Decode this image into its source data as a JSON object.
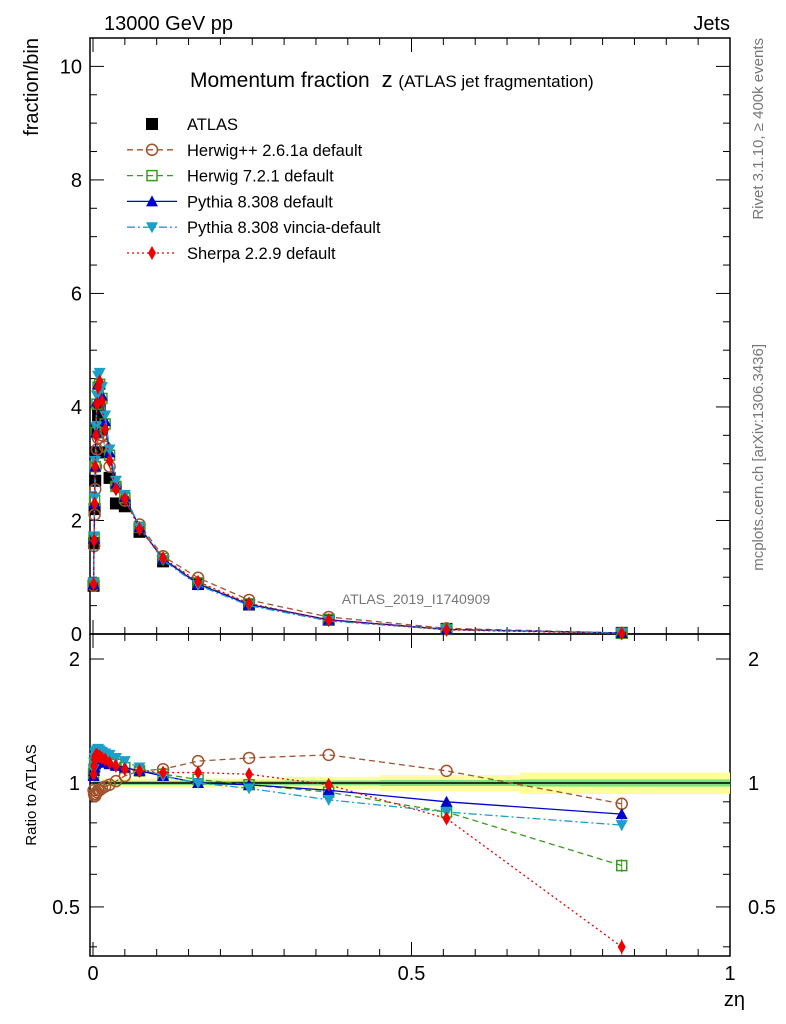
{
  "header": {
    "energy_label": "13000 GeV pp",
    "category_label": "Jets"
  },
  "side_labels": {
    "rivet": "Rivet 3.1.10, ≥ 400k events",
    "mcplots": "mcplots.cern.ch [arXiv:1306.3436]"
  },
  "chart_data": [
    {
      "type": "line",
      "panel": "main",
      "title": "Momentum fraction",
      "title_symbol": "z",
      "title_suffix": "(ATLAS jet fragmentation)",
      "watermark": "ATLAS_2019_I1740909",
      "xlabel": "zη",
      "ylabel": "fraction/bin",
      "xlim": [
        0,
        1
      ],
      "ylim": [
        0,
        10.5
      ],
      "yticks": [
        0,
        2,
        4,
        6,
        8,
        10
      ],
      "ytick_labels": [
        "0",
        "2",
        "4",
        "6",
        "8",
        "10"
      ],
      "legend_position": "top-left",
      "x": [
        0.0009,
        0.0017,
        0.0025,
        0.0035,
        0.0047,
        0.0062,
        0.008,
        0.0105,
        0.014,
        0.019,
        0.026,
        0.036,
        0.05,
        0.073,
        0.11,
        0.165,
        0.245,
        0.37,
        0.555,
        0.83
      ],
      "series": [
        {
          "name": "ATLAS",
          "color": "#000000",
          "marker": "square",
          "style": "none",
          "values": [
            0.85,
            1.6,
            2.2,
            2.7,
            3.2,
            3.6,
            3.85,
            3.95,
            3.6,
            3.2,
            2.75,
            2.3,
            2.25,
            1.8,
            1.28,
            0.88,
            0.52,
            0.25,
            0.09,
            0.02
          ]
        },
        {
          "name": "Herwig++ 2.6.1a default",
          "color": "#a0522d",
          "marker": "circle-open",
          "style": "dashed",
          "values": [
            0.85,
            1.55,
            2.1,
            2.55,
            2.95,
            3.25,
            3.45,
            3.55,
            3.5,
            3.3,
            2.95,
            2.6,
            2.35,
            1.93,
            1.37,
            0.99,
            0.6,
            0.3,
            0.1,
            0.018
          ]
        },
        {
          "name": "Herwig 7.2.1 default",
          "color": "#3a9a1a",
          "marker": "square-open",
          "style": "dashed",
          "values": [
            0.9,
            1.7,
            2.35,
            2.95,
            3.55,
            4.05,
            4.35,
            4.4,
            4.15,
            3.7,
            3.15,
            2.6,
            2.4,
            1.88,
            1.33,
            0.9,
            0.53,
            0.25,
            0.08,
            0.013
          ]
        },
        {
          "name": "Pythia 8.308 default",
          "color": "#0000cc",
          "marker": "triangle-up",
          "style": "solid",
          "values": [
            0.88,
            1.68,
            2.3,
            2.95,
            3.55,
            4.1,
            4.4,
            4.4,
            4.2,
            3.75,
            3.2,
            2.65,
            2.42,
            1.88,
            1.32,
            0.88,
            0.52,
            0.25,
            0.082,
            0.017
          ]
        },
        {
          "name": "Pythia 8.308 vincia-default",
          "color": "#1aa0c8",
          "marker": "triangle-down",
          "style": "dashdot",
          "values": [
            0.9,
            1.72,
            2.4,
            3.05,
            3.65,
            4.2,
            4.55,
            4.6,
            4.35,
            3.85,
            3.25,
            2.7,
            2.45,
            1.88,
            1.3,
            0.86,
            0.5,
            0.23,
            0.077,
            0.016
          ]
        },
        {
          "name": "Sherpa 2.2.9 default",
          "color": "#ee0000",
          "marker": "diamond",
          "style": "dotted",
          "values": [
            0.88,
            1.65,
            2.3,
            2.95,
            3.5,
            4.05,
            4.35,
            4.45,
            4.1,
            3.6,
            3.05,
            2.55,
            2.38,
            1.85,
            1.34,
            0.92,
            0.54,
            0.245,
            0.073,
            0.008
          ]
        }
      ]
    },
    {
      "type": "line",
      "panel": "ratio",
      "ylabel": "Ratio to ATLAS",
      "xlabel": "zη",
      "xlim": [
        0,
        1
      ],
      "ylim": [
        0.38,
        2.3
      ],
      "yticks": [
        0.5,
        1,
        2
      ],
      "ytick_labels": [
        "0.5",
        "1",
        "2"
      ],
      "xticks": [
        0,
        0.5,
        1
      ],
      "xtick_labels": [
        "0",
        "0.5",
        "1"
      ],
      "x": [
        0.0009,
        0.0017,
        0.0025,
        0.0035,
        0.0047,
        0.0062,
        0.008,
        0.0105,
        0.014,
        0.019,
        0.026,
        0.036,
        0.05,
        0.073,
        0.11,
        0.165,
        0.245,
        0.37,
        0.555,
        0.83
      ],
      "band_inner": {
        "color": "#7ee07e",
        "x_edges": [
          0,
          0.3,
          0.45,
          0.67,
          1.0
        ],
        "half_widths": [
          0.012,
          0.014,
          0.017,
          0.02
        ]
      },
      "band_outer": {
        "color": "#ffff99",
        "x_edges": [
          0,
          0.3,
          0.45,
          0.67,
          1.0
        ],
        "half_widths": [
          0.025,
          0.035,
          0.045,
          0.06
        ]
      },
      "series": [
        {
          "name": "Herwig++ 2.6.1a default",
          "color": "#a0522d",
          "marker": "circle-open",
          "style": "dashed",
          "values": [
            0.96,
            0.94,
            0.93,
            0.93,
            0.94,
            0.95,
            0.96,
            0.96,
            0.97,
            0.98,
            0.99,
            1.01,
            1.04,
            1.07,
            1.08,
            1.13,
            1.15,
            1.17,
            1.07,
            0.89
          ]
        },
        {
          "name": "Herwig 7.2.1 default",
          "color": "#3a9a1a",
          "marker": "square-open",
          "style": "dashed",
          "values": [
            1.05,
            1.08,
            1.1,
            1.12,
            1.14,
            1.15,
            1.16,
            1.15,
            1.14,
            1.13,
            1.12,
            1.11,
            1.09,
            1.07,
            1.05,
            1.02,
            0.99,
            0.95,
            0.85,
            0.63
          ]
        },
        {
          "name": "Pythia 8.308 default",
          "color": "#0000cc",
          "marker": "triangle-up",
          "style": "solid",
          "values": [
            1.04,
            1.07,
            1.09,
            1.11,
            1.12,
            1.13,
            1.14,
            1.13,
            1.13,
            1.12,
            1.11,
            1.1,
            1.09,
            1.07,
            1.04,
            1.0,
            0.99,
            0.96,
            0.9,
            0.84
          ]
        },
        {
          "name": "Pythia 8.308 vincia-default",
          "color": "#1aa0c8",
          "marker": "triangle-down",
          "style": "dashdot",
          "values": [
            1.08,
            1.12,
            1.15,
            1.18,
            1.19,
            1.2,
            1.21,
            1.2,
            1.19,
            1.18,
            1.17,
            1.15,
            1.13,
            1.09,
            1.04,
            1.0,
            0.97,
            0.91,
            0.85,
            0.79
          ]
        },
        {
          "name": "Sherpa 2.2.9 default",
          "color": "#ee0000",
          "marker": "diamond",
          "style": "dotted",
          "values": [
            1.05,
            1.1,
            1.14,
            1.16,
            1.17,
            1.17,
            1.16,
            1.16,
            1.15,
            1.14,
            1.12,
            1.1,
            1.08,
            1.07,
            1.06,
            1.06,
            1.05,
            0.99,
            0.82,
            0.4
          ]
        }
      ]
    }
  ]
}
